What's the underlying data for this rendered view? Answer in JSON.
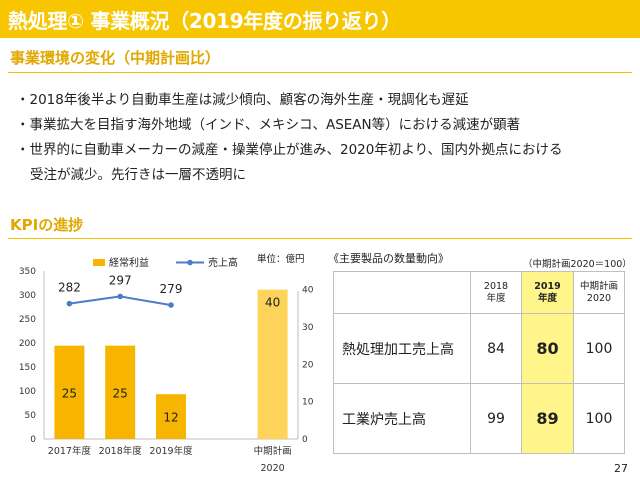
{
  "slide": {
    "title": "熱処理① 事業概況（2019年度の振り返り）",
    "page_number": "27"
  },
  "section1": {
    "heading": "事業環境の変化（中期計画比）",
    "bullets": [
      "・2018年後半より自動車生産は減少傾向、顧客の海外生産・現調化も遅延",
      "・事業拡大を目指す海外地域（インド、メキシコ、ASEAN等）における減速が顕著",
      "・世界的に自動車メーカーの減産・操業停止が進み、2020年初より、国内外拠点における",
      "受注が減少。先行きは一層不透明に"
    ]
  },
  "section2": {
    "heading": "KPIの進捗"
  },
  "colors": {
    "accent": "#f7c600",
    "bar": "#f7b500",
    "bar_plan": "#fdd35a",
    "line": "#4a7cc9",
    "highlight": "#fff58a"
  },
  "chart_data": {
    "type": "bar",
    "unit_label": "単位：億円",
    "categories": [
      "2017年度",
      "2018年度",
      "2019年度",
      "",
      "中期計画"
    ],
    "category_sublabel": "2020",
    "series": [
      {
        "name": "経常利益",
        "type": "bar",
        "axis": "right",
        "values": [
          25,
          25,
          12,
          null,
          40
        ]
      },
      {
        "name": "売上高",
        "type": "line",
        "axis": "left",
        "values": [
          282,
          297,
          279,
          null,
          null
        ]
      }
    ],
    "y_left": {
      "min": 0,
      "max": 350,
      "ticks": [
        0,
        50,
        100,
        150,
        200,
        250,
        300,
        350
      ]
    },
    "y_right": {
      "min": 0,
      "max": 45,
      "ticks": [
        0,
        10,
        20,
        30,
        40
      ]
    },
    "legend_position": "top"
  },
  "quantity_table": {
    "title": "《主要製品の数量動向》",
    "note": "（中期計画2020＝100）",
    "headers": [
      {
        "line1": "2018",
        "line2": "年度"
      },
      {
        "line1": "2019",
        "line2": "年度"
      },
      {
        "line1": "中期計画",
        "line2": "2020"
      }
    ],
    "rows": [
      {
        "label": "熱処理加工売上高",
        "values": [
          "84",
          "80",
          "100"
        ]
      },
      {
        "label": "工業炉売上高",
        "values": [
          "99",
          "89",
          "100"
        ]
      }
    ]
  }
}
